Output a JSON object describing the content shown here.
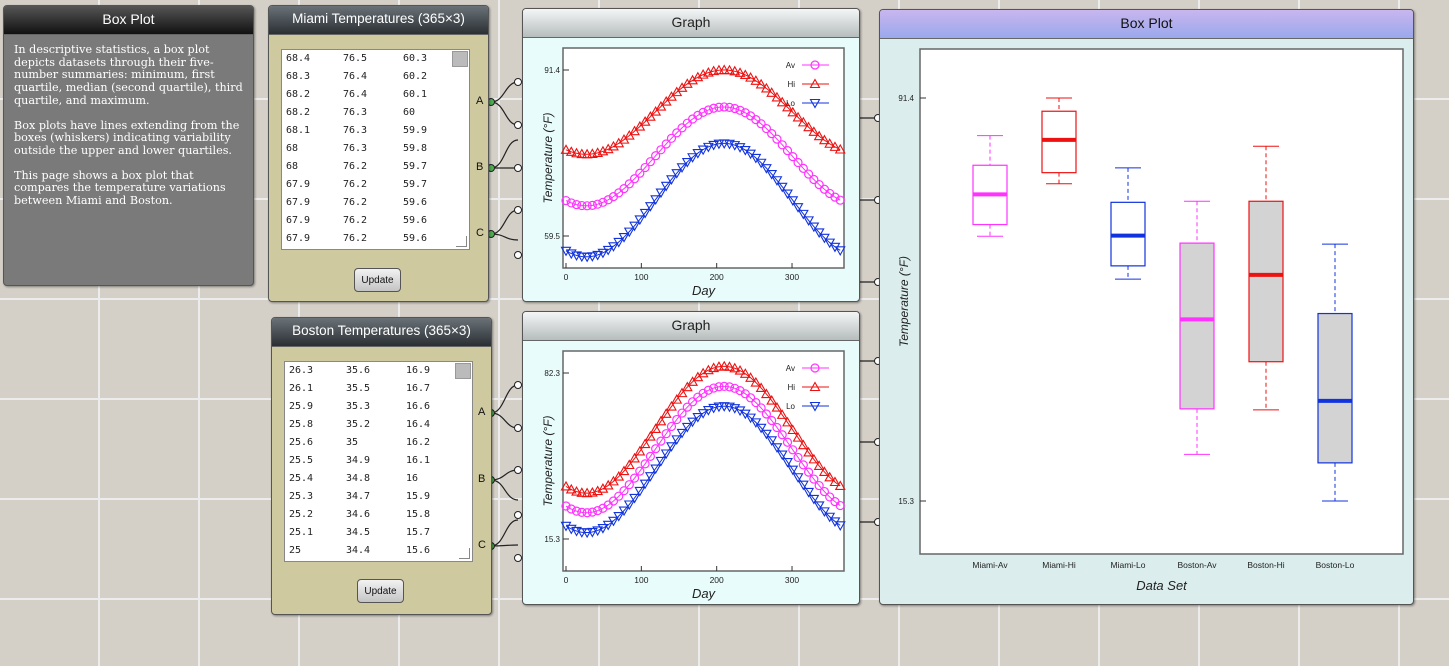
{
  "info": {
    "title": "Box Plot",
    "p1": "In descriptive statistics, a box plot depicts datasets through their five-number summaries: minimum, first quartile, median (second quartile), third quartile, and maximum.",
    "p2": "Box plots have lines extending from the boxes (whiskers) indicating variability outside the upper and lower quartiles.",
    "p3": "This page shows a box plot that compares the temperature variations between Miami and Boston."
  },
  "miami": {
    "title": "Miami Temperatures (365×3)",
    "rows": [
      [
        "68.4",
        "76.5",
        "60.3"
      ],
      [
        "68.3",
        "76.4",
        "60.2"
      ],
      [
        "68.2",
        "76.4",
        "60.1"
      ],
      [
        "68.2",
        "76.3",
        "60"
      ],
      [
        "68.1",
        "76.3",
        "59.9"
      ],
      [
        "68",
        "76.3",
        "59.8"
      ],
      [
        "68",
        "76.2",
        "59.7"
      ],
      [
        "67.9",
        "76.2",
        "59.7"
      ],
      [
        "67.9",
        "76.2",
        "59.6"
      ],
      [
        "67.9",
        "76.2",
        "59.6"
      ],
      [
        "67.9",
        "76.2",
        "59.6"
      ]
    ],
    "update_label": "Update",
    "ports_left": [
      "A",
      "B",
      "C"
    ],
    "ports_right": [
      "I",
      "J",
      "K",
      "X",
      "D"
    ]
  },
  "boston": {
    "title": "Boston Temperatures (365×3)",
    "rows": [
      [
        "26.3",
        "35.6",
        "16.9"
      ],
      [
        "26.1",
        "35.5",
        "16.7"
      ],
      [
        "25.9",
        "35.3",
        "16.6"
      ],
      [
        "25.8",
        "35.2",
        "16.4"
      ],
      [
        "25.6",
        "35",
        "16.2"
      ],
      [
        "25.5",
        "34.9",
        "16.1"
      ],
      [
        "25.4",
        "34.8",
        "16"
      ],
      [
        "25.3",
        "34.7",
        "15.9"
      ],
      [
        "25.2",
        "34.6",
        "15.8"
      ],
      [
        "25.1",
        "34.5",
        "15.7"
      ],
      [
        "25",
        "34.4",
        "15.6"
      ]
    ],
    "update_label": "Update",
    "ports_left": [
      "A",
      "B",
      "C"
    ],
    "ports_right": [
      "I",
      "J",
      "K",
      "X",
      "D"
    ]
  },
  "graph_top": {
    "title": "Graph",
    "ymax_label": "91.4",
    "ymin_label": "59.5",
    "xticks": [
      "0",
      "100",
      "200",
      "300"
    ],
    "xlabel": "Day",
    "ylabel": "Temperature (°F)",
    "legend": [
      "Av",
      "Hi",
      "Lo"
    ],
    "legend_visible": [
      "Av",
      "Hi",
      "Lo"
    ],
    "ylim": [
      59.5,
      91.4
    ],
    "series": {
      "Av": {
        "mean": 74.8,
        "amp": 9.5
      },
      "Hi": {
        "mean": 83.3,
        "amp": 8.1
      },
      "Lo": {
        "mean": 66.4,
        "amp": 10.9
      }
    }
  },
  "graph_bottom": {
    "title": "Graph",
    "ymax_label": "82.3",
    "ymin_label": "15.3",
    "xticks": [
      "0",
      "100",
      "200",
      "300"
    ],
    "xlabel": "Day",
    "ylabel": "Temperature (°F)",
    "legend": [
      "Av",
      "Hi",
      "Lo"
    ],
    "legend_visible": [
      "Av",
      "Hi",
      "Lo"
    ],
    "ylim": [
      15.3,
      82.3
    ],
    "series": {
      "Av": {
        "mean": 51.4,
        "amp": 25.5
      },
      "Hi": {
        "mean": 59.4,
        "amp": 25.6
      },
      "Lo": {
        "mean": 43.4,
        "amp": 25.5
      }
    }
  },
  "boxplot_panel": {
    "title": "Box Plot",
    "ports": [
      "A",
      "B",
      "C",
      "D",
      "E",
      "F"
    ]
  },
  "colors": {
    "Av": "#ff33ff",
    "Hi": "#ee1111",
    "Lo": "#1133dd"
  },
  "chart_data": {
    "type": "box",
    "title": "Box Plot",
    "xlabel": "Data Set",
    "ylabel": "Temperature (°F)",
    "ylim": [
      15.3,
      91.4
    ],
    "ytick_labels": [
      "91.4",
      "15.3"
    ],
    "categories": [
      "Miami-Av",
      "Miami-Hi",
      "Miami-Lo",
      "Boston-Av",
      "Boston-Hi",
      "Boston-Lo"
    ],
    "boxes": [
      {
        "name": "Miami-Av",
        "min": 65.3,
        "q1": 67.5,
        "median": 73.2,
        "q3": 78.7,
        "max": 84.3,
        "color": "#ff33ff"
      },
      {
        "name": "Miami-Hi",
        "min": 75.2,
        "q1": 77.3,
        "median": 83.5,
        "q3": 88.9,
        "max": 91.4,
        "color": "#ee1111"
      },
      {
        "name": "Miami-Lo",
        "min": 57.2,
        "q1": 59.7,
        "median": 65.4,
        "q3": 71.7,
        "max": 78.2,
        "color": "#1133dd"
      },
      {
        "name": "Boston-Av",
        "min": 24.1,
        "q1": 32.7,
        "median": 49.6,
        "q3": 64.0,
        "max": 71.9,
        "color": "#ff33ff"
      },
      {
        "name": "Boston-Hi",
        "min": 32.5,
        "q1": 41.6,
        "median": 58.0,
        "q3": 71.9,
        "max": 82.3,
        "color": "#ee1111"
      },
      {
        "name": "Boston-Lo",
        "min": 15.3,
        "q1": 22.5,
        "median": 34.2,
        "q3": 50.7,
        "max": 63.8,
        "color": "#1133dd"
      }
    ]
  }
}
